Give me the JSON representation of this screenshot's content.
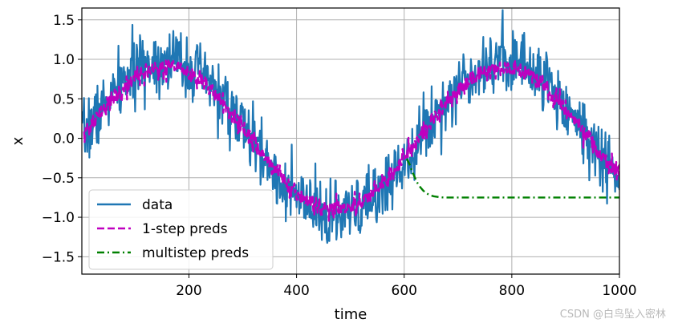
{
  "chart_data": {
    "type": "line",
    "xlabel": "time",
    "ylabel": "x",
    "xlim": [
      1,
      1000
    ],
    "ylim": [
      -1.72,
      1.65
    ],
    "xticks": [
      200,
      400,
      600,
      800,
      1000
    ],
    "yticks": [
      -1.5,
      -1.0,
      -0.5,
      0.0,
      0.5,
      1.0,
      1.5
    ],
    "grid": true,
    "legend_position": "lower-left",
    "series": [
      {
        "name": "data",
        "color": "#1f77b4",
        "style": "solid",
        "x_range": [
          1,
          1000
        ],
        "model": "sin(0.01*t)",
        "noise_amplitude": 0.2,
        "noise_seed": 7
      },
      {
        "name": "1-step preds",
        "color": "#bf00bf",
        "style": "dashed",
        "x_range": [
          5,
          1000
        ],
        "model": "0.9*sin(0.01*t)",
        "noise_amplitude": 0.06,
        "noise_seed": 21
      },
      {
        "name": "multistep preds",
        "color": "#008000",
        "style": "dashdot",
        "x": [
          605,
          610,
          615,
          620,
          625,
          630,
          635,
          640,
          645,
          650,
          655,
          660,
          665,
          670,
          680,
          700,
          750,
          800,
          850,
          900,
          950,
          1000
        ],
        "values": [
          -0.26,
          -0.33,
          -0.42,
          -0.5,
          -0.57,
          -0.62,
          -0.66,
          -0.69,
          -0.71,
          -0.725,
          -0.735,
          -0.74,
          -0.745,
          -0.748,
          -0.75,
          -0.75,
          -0.75,
          -0.75,
          -0.75,
          -0.75,
          -0.75,
          -0.75
        ]
      }
    ]
  },
  "watermark": "CSDN @白鸟坠入密林"
}
